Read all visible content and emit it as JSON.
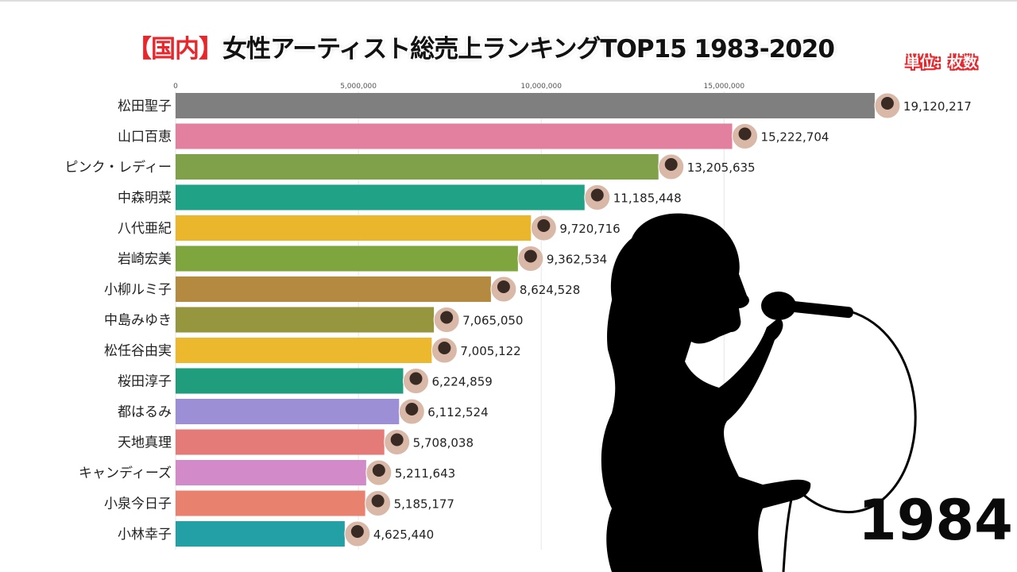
{
  "header": {
    "title_prefix": "【国内】",
    "title_main": "女性アーティスト総売上ランキングTOP15 1983-2020",
    "unit_label": "単位：枚数"
  },
  "year_label": "1984",
  "chart_data": {
    "type": "bar",
    "orientation": "horizontal",
    "title": "【国内】女性アーティスト総売上ランキングTOP15 1983-2020",
    "xlim": [
      0,
      20000000
    ],
    "x_ticks": [
      0,
      5000000,
      10000000,
      15000000
    ],
    "x_tick_labels": [
      "0",
      "5,000,000",
      "10,000,000",
      "15,000,000"
    ],
    "grid": true,
    "categories": [
      "松田聖子",
      "山口百恵",
      "ピンク・レディー",
      "中森明菜",
      "八代亜紀",
      "岩崎宏美",
      "小柳ルミ子",
      "中島みゆき",
      "松任谷由実",
      "桜田淳子",
      "都はるみ",
      "天地真理",
      "キャンディーズ",
      "小泉今日子",
      "小林幸子"
    ],
    "values": [
      19120217,
      15222704,
      13205635,
      11185448,
      9720716,
      9362534,
      8624528,
      7065050,
      7005122,
      6224859,
      6112524,
      5708038,
      5211643,
      5185177,
      4625440
    ],
    "value_labels": [
      "19,120,217",
      "15,222,704",
      "13,205,635",
      "11,185,448",
      "9,720,716",
      "9,362,534",
      "8,624,528",
      "7,065,050",
      "7,005,122",
      "6,224,859",
      "6,112,524",
      "5,708,038",
      "5,211,643",
      "5,185,177",
      "4,625,440"
    ],
    "colors": [
      "#7f7f7f",
      "#e4809f",
      "#80a04a",
      "#20a286",
      "#eab72c",
      "#7fa63e",
      "#b38a3f",
      "#96963e",
      "#ecb92e",
      "#1f9d7c",
      "#9c8fd6",
      "#e47b79",
      "#d38ac8",
      "#e8826f",
      "#23a0a6"
    ]
  }
}
